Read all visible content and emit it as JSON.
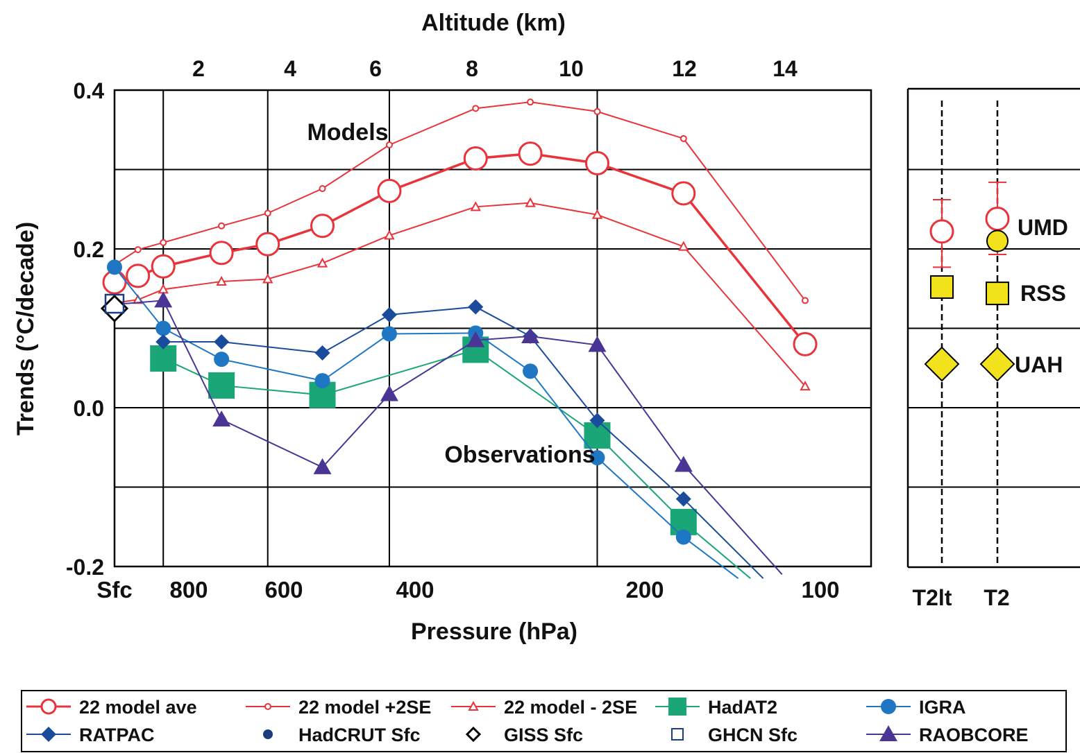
{
  "chart_data": [
    {
      "type": "line",
      "title": "",
      "top_axis_label": "Altitude (km)",
      "top_ticks": [
        "2",
        "4",
        "6",
        "8",
        "10",
        "12",
        "14"
      ],
      "xlabel": "Pressure (hPa)",
      "x_tick_labels": [
        "Sfc",
        "800",
        "600",
        "400",
        "200",
        "100"
      ],
      "ylabel": "Trends (°C/decade)",
      "y_tick_labels": [
        "0.4",
        "0.2",
        "0.0",
        "-0.2"
      ],
      "ylim": [
        -0.2,
        0.4
      ],
      "grid": true,
      "annotations": [
        "Models",
        "Observations"
      ],
      "levels_hPa": [
        "Sfc",
        925,
        850,
        700,
        600,
        500,
        400,
        300,
        250,
        200,
        150,
        100
      ],
      "series": [
        {
          "name": "22 model ave",
          "color": "#e8333a",
          "marker": "open-circle",
          "points": [
            [
              "Sfc",
              0.158
            ],
            [
              925,
              0.166
            ],
            [
              850,
              0.178
            ],
            [
              700,
              0.195
            ],
            [
              600,
              0.206
            ],
            [
              500,
              0.229
            ],
            [
              400,
              0.273
            ],
            [
              300,
              0.314
            ],
            [
              250,
              0.32
            ],
            [
              200,
              0.308
            ],
            [
              150,
              0.27
            ],
            [
              100,
              0.08
            ]
          ]
        },
        {
          "name": "22 model +2SE",
          "color": "#e8333a",
          "marker": "small-open-circle",
          "points": [
            [
              "Sfc",
              0.18
            ],
            [
              925,
              0.199
            ],
            [
              850,
              0.208
            ],
            [
              700,
              0.229
            ],
            [
              600,
              0.245
            ],
            [
              500,
              0.276
            ],
            [
              400,
              0.331
            ],
            [
              300,
              0.377
            ],
            [
              250,
              0.385
            ],
            [
              200,
              0.373
            ],
            [
              150,
              0.339
            ],
            [
              100,
              0.135
            ]
          ]
        },
        {
          "name": "22 model - 2SE",
          "color": "#e8333a",
          "marker": "open-triangle",
          "points": [
            [
              "Sfc",
              0.132
            ],
            [
              925,
              0.136
            ],
            [
              850,
              0.149
            ],
            [
              700,
              0.159
            ],
            [
              600,
              0.162
            ],
            [
              500,
              0.182
            ],
            [
              400,
              0.217
            ],
            [
              300,
              0.253
            ],
            [
              250,
              0.258
            ],
            [
              200,
              0.243
            ],
            [
              150,
              0.203
            ],
            [
              100,
              0.027
            ]
          ]
        },
        {
          "name": "HadAT2",
          "color": "#1aa676",
          "marker": "filled-square",
          "points": [
            [
              850,
              0.062
            ],
            [
              700,
              0.028
            ],
            [
              500,
              0.016
            ],
            [
              300,
              0.073
            ],
            [
              200,
              -0.035
            ],
            [
              150,
              -0.144
            ],
            [
              120,
              -0.215
            ]
          ]
        },
        {
          "name": "IGRA",
          "color": "#1f77c4",
          "marker": "filled-circle",
          "points": [
            [
              "Sfc",
              0.177
            ],
            [
              850,
              0.1
            ],
            [
              700,
              0.061
            ],
            [
              500,
              0.034
            ],
            [
              400,
              0.093
            ],
            [
              300,
              0.094
            ],
            [
              250,
              0.046
            ],
            [
              200,
              -0.063
            ],
            [
              150,
              -0.163
            ],
            [
              125,
              -0.215
            ]
          ]
        },
        {
          "name": "RATPAC",
          "color": "#1b4c9c",
          "marker": "filled-diamond",
          "points": [
            [
              850,
              0.083
            ],
            [
              700,
              0.083
            ],
            [
              500,
              0.069
            ],
            [
              400,
              0.117
            ],
            [
              300,
              0.127
            ],
            [
              250,
              0.09
            ],
            [
              200,
              -0.016
            ],
            [
              150,
              -0.115
            ],
            [
              115,
              -0.215
            ]
          ]
        },
        {
          "name": "RAOBCORE",
          "color": "#4a3594",
          "marker": "filled-triangle",
          "points": [
            [
              "Sfc",
              0.13
            ],
            [
              850,
              0.135
            ],
            [
              700,
              -0.015
            ],
            [
              500,
              -0.075
            ],
            [
              400,
              0.017
            ],
            [
              300,
              0.085
            ],
            [
              250,
              0.09
            ],
            [
              200,
              0.079
            ],
            [
              150,
              -0.072
            ],
            [
              108,
              -0.21
            ]
          ]
        },
        {
          "name": "HadCRUT Sfc",
          "color": "#1b3d80",
          "marker": "filled-circle-dark",
          "points": [
            [
              "Sfc",
              0.13
            ]
          ]
        },
        {
          "name": "GISS Sfc",
          "color": "#000000",
          "marker": "open-diamond",
          "points": [
            [
              "Sfc",
              0.125
            ]
          ]
        },
        {
          "name": "GHCN Sfc",
          "color": "#1b3d80",
          "marker": "open-square",
          "points": [
            [
              "Sfc",
              0.131
            ]
          ]
        }
      ]
    },
    {
      "type": "scatter",
      "categories": [
        "T2lt",
        "T2"
      ],
      "ylim": [
        -0.2,
        0.4
      ],
      "series": [
        {
          "name": "Models",
          "color": "#e8333a",
          "marker": "open-circle-errorbar",
          "values": [
            0.222,
            0.238
          ],
          "upper": [
            0.262,
            0.284
          ],
          "lower": [
            0.177,
            0.193
          ]
        },
        {
          "name": "UMD",
          "color": "#f2e21c",
          "marker": "filled-circle",
          "values": [
            null,
            0.21
          ]
        },
        {
          "name": "RSS",
          "color": "#f2e21c",
          "marker": "filled-square",
          "values": [
            0.152,
            0.144
          ]
        },
        {
          "name": "UAH",
          "color": "#f2e21c",
          "marker": "filled-diamond",
          "values": [
            0.055,
            0.055
          ]
        }
      ],
      "point_labels": [
        "UMD",
        "RSS",
        "UAH"
      ],
      "x_tick_labels": [
        "T2lt",
        "T2"
      ]
    }
  ],
  "legend": {
    "items": [
      {
        "label": "22 model ave",
        "color": "#e8333a",
        "marker": "open-circle",
        "line": true
      },
      {
        "label": "22 model +2SE",
        "color": "#e8333a",
        "marker": "small-open-circle",
        "line": true
      },
      {
        "label": "22 model - 2SE",
        "color": "#e8333a",
        "marker": "open-triangle",
        "line": true
      },
      {
        "label": "HadAT2",
        "color": "#1aa676",
        "marker": "filled-square",
        "line": true
      },
      {
        "label": "IGRA",
        "color": "#1f77c4",
        "marker": "filled-circle",
        "line": true
      },
      {
        "label": "RATPAC",
        "color": "#1b4c9c",
        "marker": "filled-diamond",
        "line": true
      },
      {
        "label": "HadCRUT Sfc",
        "color": "#1b3d80",
        "marker": "filled-circle-dark",
        "line": false
      },
      {
        "label": "GISS Sfc",
        "color": "#000000",
        "marker": "open-diamond",
        "line": false
      },
      {
        "label": "GHCN Sfc",
        "color": "#1b3d80",
        "marker": "open-square",
        "line": false
      },
      {
        "label": "RAOBCORE",
        "color": "#4a3594",
        "marker": "filled-triangle",
        "line": true
      }
    ]
  }
}
